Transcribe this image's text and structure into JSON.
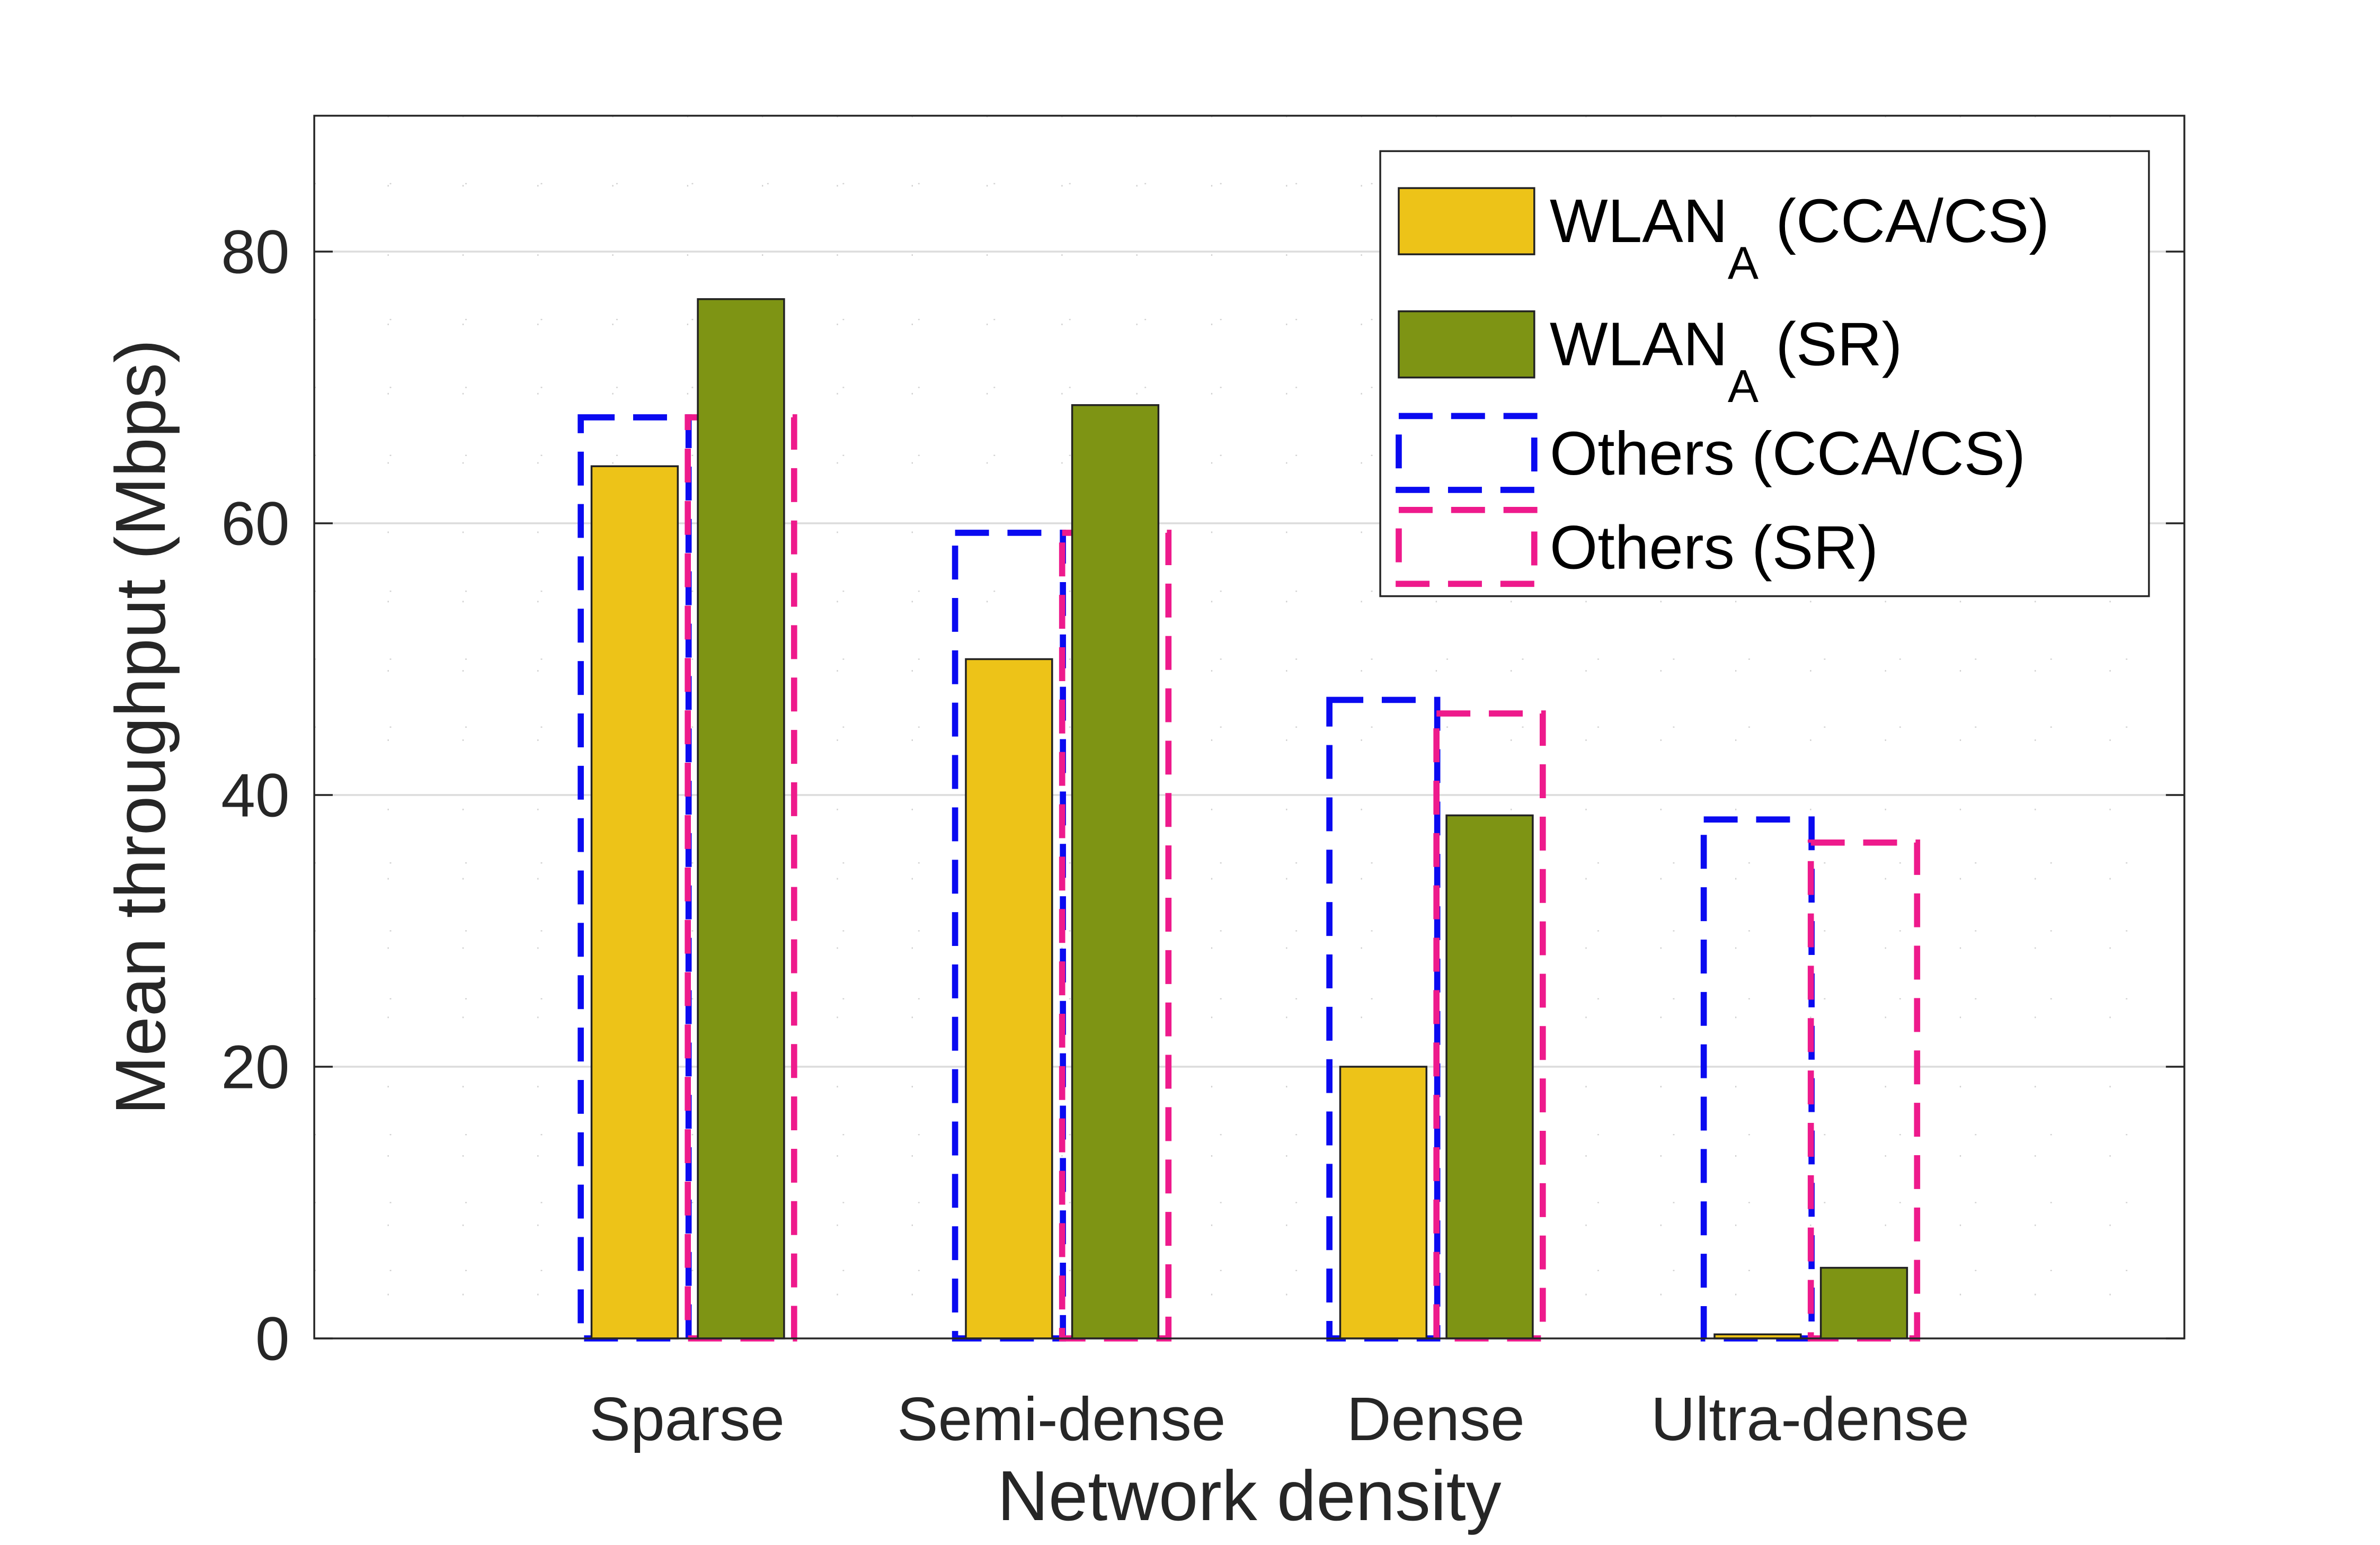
{
  "chart_data": {
    "type": "bar",
    "title": "",
    "xlabel": "Network density",
    "ylabel": "Mean throughput (Mbps)",
    "ylim": [
      0,
      90
    ],
    "yticks": [
      0,
      20,
      40,
      60,
      80
    ],
    "grid": true,
    "legend_position": "top-right",
    "categories": [
      "Sparse",
      "Semi-dense",
      "Dense",
      "Ultra-dense"
    ],
    "series": [
      {
        "name": "WLAN_A (CCA/CS)",
        "label_main": "WLAN",
        "label_sub": "A",
        "label_rest": " (CCA/CS)",
        "style": "filled",
        "color": "#EDC318",
        "values": [
          64.2,
          50.0,
          20.0,
          0.3
        ]
      },
      {
        "name": "WLAN_A (SR)",
        "label_main": "WLAN",
        "label_sub": "A",
        "label_rest": " (SR)",
        "style": "filled",
        "color": "#7E9414",
        "values": [
          76.5,
          68.7,
          38.5,
          5.2
        ]
      },
      {
        "name": "Others (CCA/CS)",
        "label_main": "Others (CCA/CS)",
        "label_sub": "",
        "label_rest": "",
        "style": "dashed-outline",
        "color": "#0A0AF0",
        "values": [
          67.8,
          59.3,
          47.0,
          38.2
        ]
      },
      {
        "name": "Others (SR)",
        "label_main": "Others (SR)",
        "label_sub": "",
        "label_rest": "",
        "style": "dashed-outline",
        "color": "#EE1A8C",
        "values": [
          67.8,
          59.3,
          46.0,
          36.5
        ]
      }
    ]
  }
}
